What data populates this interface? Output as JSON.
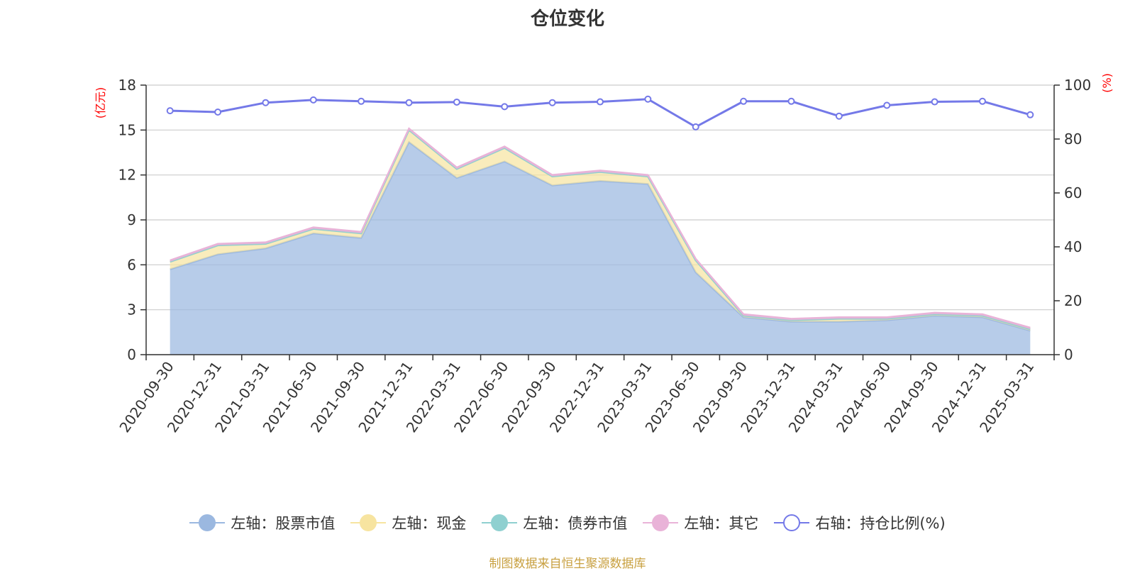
{
  "title": "仓位变化",
  "source": "制图数据来自恒生聚源数据库",
  "colors": {
    "stock": "#9bb8e0",
    "cash": "#f7e4a0",
    "bond": "#8fd0d0",
    "other": "#e9b3d8",
    "ratio": "#7479e8",
    "axis_unit": "#ff0000",
    "grid": "#cccccc",
    "axis": "#333333"
  },
  "chart_data": {
    "type": "area",
    "title": "仓位变化",
    "categories": [
      "2020-09-30",
      "2020-12-31",
      "2021-03-31",
      "2021-06-30",
      "2021-09-30",
      "2021-12-31",
      "2022-03-31",
      "2022-06-30",
      "2022-09-30",
      "2022-12-31",
      "2023-03-31",
      "2023-06-30",
      "2023-09-30",
      "2023-12-31",
      "2024-03-31",
      "2024-06-30",
      "2024-09-30",
      "2024-12-31",
      "2025-03-31"
    ],
    "left_axis": {
      "unit": "(亿元)",
      "ylim": [
        0,
        18
      ],
      "ticks": [
        0,
        3,
        6,
        9,
        12,
        15,
        18
      ]
    },
    "right_axis": {
      "unit": "(%)",
      "ylim": [
        0,
        100
      ],
      "ticks": [
        0,
        20,
        40,
        60,
        80,
        100
      ]
    },
    "stacked": true,
    "grid": true,
    "legend_position": "bottom",
    "series": [
      {
        "name": "左轴：股票市值",
        "key": "stock",
        "axis": "left",
        "values": [
          5.7,
          6.7,
          7.1,
          8.1,
          7.8,
          14.2,
          11.8,
          12.9,
          11.3,
          11.6,
          11.4,
          5.5,
          2.5,
          2.2,
          2.2,
          2.3,
          2.6,
          2.5,
          1.6
        ]
      },
      {
        "name": "左轴：现金",
        "key": "cash",
        "axis": "left",
        "values": [
          0.5,
          0.6,
          0.3,
          0.3,
          0.3,
          0.8,
          0.6,
          0.9,
          0.6,
          0.6,
          0.5,
          0.8,
          0.1,
          0.1,
          0.2,
          0.1,
          0.1,
          0.1,
          0.1
        ]
      },
      {
        "name": "左轴：债券市值",
        "key": "bond",
        "axis": "left",
        "values": [
          0,
          0,
          0,
          0,
          0,
          0,
          0,
          0,
          0,
          0,
          0,
          0,
          0,
          0,
          0,
          0,
          0,
          0,
          0
        ]
      },
      {
        "name": "左轴：其它",
        "key": "other",
        "axis": "left",
        "values": [
          0.1,
          0.1,
          0.1,
          0.1,
          0.1,
          0.1,
          0.1,
          0.1,
          0.1,
          0.1,
          0.1,
          0.1,
          0.1,
          0.1,
          0.1,
          0.1,
          0.1,
          0.1,
          0.1
        ]
      },
      {
        "name": "右轴：持仓比例(%)",
        "key": "ratio",
        "axis": "right",
        "values": [
          90.5,
          90,
          93.5,
          94.5,
          94,
          93.5,
          93.7,
          92,
          93.5,
          93.8,
          94.8,
          84.5,
          94,
          94,
          88.5,
          92.5,
          93.8,
          94,
          89
        ]
      }
    ]
  }
}
